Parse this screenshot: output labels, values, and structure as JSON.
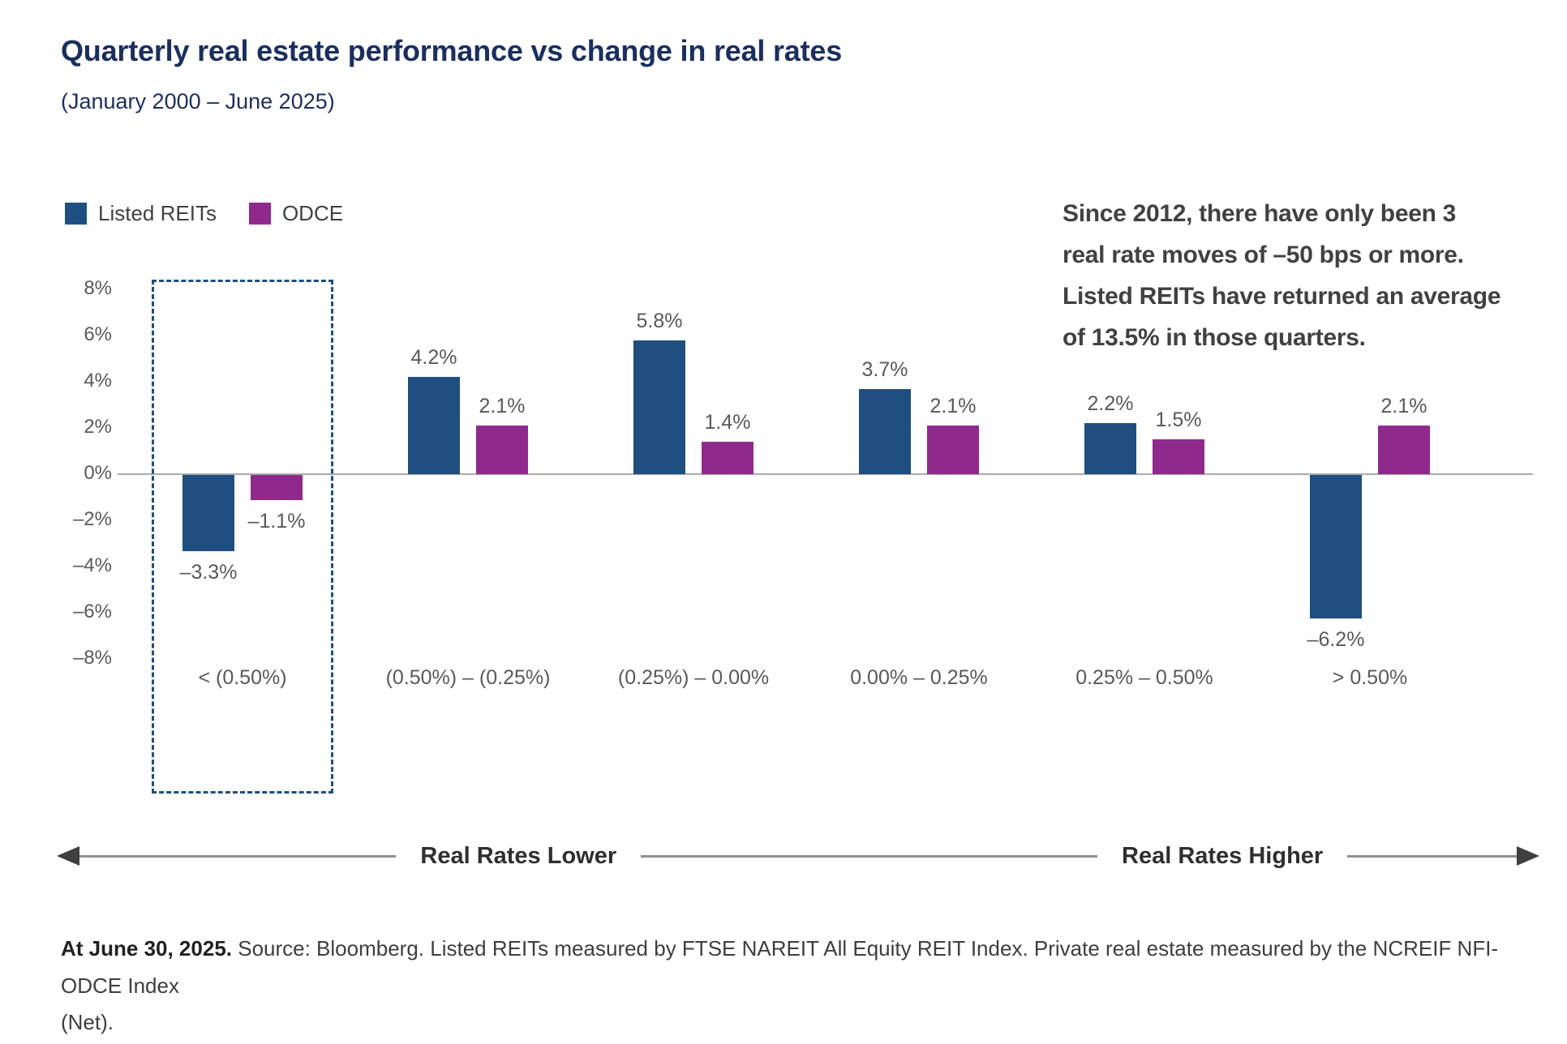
{
  "title": "Quarterly real estate performance vs change in real rates",
  "subtitle": "(January 2000 – June 2025)",
  "legend": [
    {
      "label": "Listed REITs",
      "color": "#1f4e80"
    },
    {
      "label": "ODCE",
      "color": "#8f2a8c"
    }
  ],
  "annotation": "Since 2012, there have only been 3\nreal rate moves of –50 bps or more.\nListed REITs have returned an average\nof 13.5% in those quarters.",
  "chart_data": {
    "type": "bar",
    "categories": [
      "< (0.50%)",
      "(0.50%) – (0.25%)",
      "(0.25%) – 0.00%",
      "0.00% – 0.25%",
      "0.25% – 0.50%",
      "> 0.50%"
    ],
    "series": [
      {
        "name": "Listed REITs",
        "color": "#1f4e80",
        "values": [
          -3.3,
          4.2,
          5.8,
          3.7,
          2.2,
          -6.2
        ],
        "labels": [
          "–3.3%",
          "4.2%",
          "5.8%",
          "3.7%",
          "2.2%",
          "–6.2%"
        ]
      },
      {
        "name": "ODCE",
        "color": "#8f2a8c",
        "values": [
          -1.1,
          2.1,
          1.4,
          2.1,
          1.5,
          2.1
        ],
        "labels": [
          "–1.1%",
          "2.1%",
          "1.4%",
          "2.1%",
          "1.5%",
          "2.1%"
        ]
      }
    ],
    "title": "Quarterly real estate performance vs change in real rates",
    "xlabel": "",
    "ylabel": "",
    "y_ticks": [
      {
        "value": 8,
        "label": "8%"
      },
      {
        "value": 6,
        "label": "6%"
      },
      {
        "value": 4,
        "label": "4%"
      },
      {
        "value": 2,
        "label": "2%"
      },
      {
        "value": 0,
        "label": "0%"
      },
      {
        "value": -2,
        "label": "–2%"
      },
      {
        "value": -4,
        "label": "–4%"
      },
      {
        "value": -6,
        "label": "–6%"
      },
      {
        "value": -8,
        "label": "–8%"
      }
    ],
    "ylim": [
      -8,
      8
    ],
    "grid": false,
    "legend_position": "top-left",
    "highlight_category_index": 0,
    "zero_line": true
  },
  "axis_arrows": {
    "lower_label": "Real Rates Lower",
    "higher_label": "Real Rates Higher"
  },
  "footnote": {
    "bold": "At June 30, 2025.",
    "text": " Source: Bloomberg. Listed REITs measured by FTSE NAREIT All Equity REIT Index. Private real estate measured by the NCREIF NFI-ODCE Index\n(Net)."
  }
}
